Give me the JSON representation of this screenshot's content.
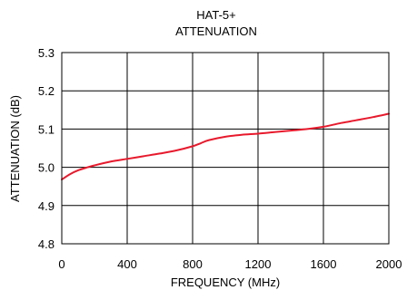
{
  "chart_data": {
    "type": "line",
    "title": "HAT-5+",
    "subtitle": "ATTENUATION",
    "xlabel": "FREQUENCY (MHz)",
    "ylabel": "ATTENUATION (dB)",
    "xlim": [
      0,
      2000
    ],
    "ylim": [
      4.8,
      5.3
    ],
    "xticks": [
      0,
      400,
      800,
      1200,
      1600,
      2000
    ],
    "xtick_labels": [
      "0",
      "400",
      "800",
      "1200",
      "1600",
      "2000"
    ],
    "yticks": [
      4.8,
      4.9,
      5.0,
      5.1,
      5.2,
      5.3
    ],
    "ytick_labels": [
      "4.8",
      "4.9",
      "5.0",
      "5.1",
      "5.2",
      "5.3"
    ],
    "grid": true,
    "series": [
      {
        "color": "#e8192c",
        "x": [
          0,
          50,
          100,
          150,
          200,
          300,
          400,
          500,
          600,
          700,
          800,
          850,
          900,
          1000,
          1100,
          1200,
          1300,
          1400,
          1500,
          1600,
          1700,
          1800,
          1900,
          2000
        ],
        "y": [
          4.968,
          4.982,
          4.992,
          4.999,
          5.005,
          5.015,
          5.022,
          5.029,
          5.036,
          5.044,
          5.055,
          5.063,
          5.071,
          5.08,
          5.085,
          5.088,
          5.092,
          5.096,
          5.1,
          5.106,
          5.115,
          5.123,
          5.131,
          5.14
        ]
      }
    ]
  }
}
